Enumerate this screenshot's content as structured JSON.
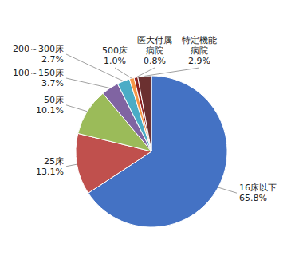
{
  "chart_data": {
    "type": "pie",
    "categories": [
      "16床以下",
      "25床",
      "50床",
      "100～150床",
      "200～300床",
      "500床",
      "医大付属\n病院",
      "特定機能\n病院"
    ],
    "values": [
      65.8,
      13.1,
      10.1,
      3.7,
      2.7,
      1.0,
      0.8,
      2.9
    ],
    "value_labels": [
      "65.8%",
      "13.1%",
      "10.1%",
      "3.7%",
      "2.7%",
      "1.0%",
      "0.8%",
      "2.9%"
    ],
    "colors": [
      "#4472C4",
      "#C0504D",
      "#9BBB59",
      "#8064A2",
      "#4BACC6",
      "#F79646",
      "#8B2020",
      "#6B3030"
    ],
    "data_labels": true
  }
}
